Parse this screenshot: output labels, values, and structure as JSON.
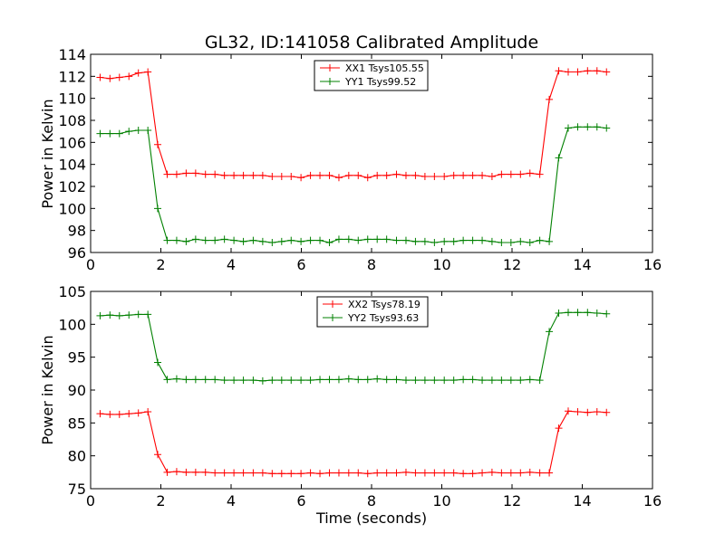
{
  "chart_data": [
    {
      "type": "line",
      "title": "GL32, ID:141058 Calibrated Amplitude",
      "xlabel": "",
      "ylabel": "Power in Kelvin",
      "xlim": [
        0,
        16
      ],
      "ylim": [
        96,
        114
      ],
      "xticks": [
        0,
        2,
        4,
        6,
        8,
        10,
        12,
        14,
        16
      ],
      "yticks": [
        96,
        98,
        100,
        102,
        104,
        106,
        108,
        110,
        112,
        114
      ],
      "legend": "top-center",
      "x": [
        0.27,
        0.55,
        0.82,
        1.09,
        1.36,
        1.63,
        1.91,
        2.18,
        2.45,
        2.72,
        2.99,
        3.27,
        3.54,
        3.81,
        4.08,
        4.35,
        4.63,
        4.9,
        5.17,
        5.44,
        5.71,
        5.99,
        6.26,
        6.53,
        6.8,
        7.07,
        7.35,
        7.62,
        7.89,
        8.16,
        8.43,
        8.71,
        8.98,
        9.25,
        9.52,
        9.79,
        10.07,
        10.34,
        10.61,
        10.88,
        11.15,
        11.43,
        11.7,
        11.97,
        12.24,
        12.51,
        12.79,
        13.06,
        13.33,
        13.6,
        13.87,
        14.15,
        14.42,
        14.69
      ],
      "series": [
        {
          "name": "XX1 Tsys105.55",
          "color": "#ff0000",
          "values": [
            111.9,
            111.8,
            111.9,
            112.0,
            112.3,
            112.4,
            105.8,
            103.1,
            103.1,
            103.2,
            103.2,
            103.1,
            103.1,
            103.0,
            103.0,
            103.0,
            103.0,
            103.0,
            102.9,
            102.9,
            102.9,
            102.8,
            103.0,
            103.0,
            103.0,
            102.8,
            103.0,
            103.0,
            102.8,
            103.0,
            103.0,
            103.1,
            103.0,
            103.0,
            102.9,
            102.9,
            102.9,
            103.0,
            103.0,
            103.0,
            103.0,
            102.9,
            103.1,
            103.1,
            103.1,
            103.2,
            103.1,
            109.9,
            112.5,
            112.4,
            112.4,
            112.5,
            112.5,
            112.4
          ]
        },
        {
          "name": "YY1 Tsys99.52",
          "color": "#008000",
          "values": [
            106.8,
            106.8,
            106.8,
            107.0,
            107.1,
            107.1,
            100.0,
            97.1,
            97.1,
            97.0,
            97.2,
            97.1,
            97.1,
            97.2,
            97.1,
            97.0,
            97.1,
            97.0,
            96.9,
            97.0,
            97.1,
            97.0,
            97.1,
            97.1,
            96.9,
            97.2,
            97.2,
            97.1,
            97.2,
            97.2,
            97.2,
            97.1,
            97.1,
            97.0,
            97.0,
            96.9,
            97.0,
            97.0,
            97.1,
            97.1,
            97.1,
            97.0,
            96.9,
            96.9,
            97.0,
            96.9,
            97.1,
            97.0,
            104.6,
            107.3,
            107.4,
            107.4,
            107.4,
            107.3
          ]
        }
      ]
    },
    {
      "type": "line",
      "title": "",
      "xlabel": "Time (seconds)",
      "ylabel": "Power in Kelvin",
      "xlim": [
        0,
        16
      ],
      "ylim": [
        75,
        105
      ],
      "xticks": [
        0,
        2,
        4,
        6,
        8,
        10,
        12,
        14,
        16
      ],
      "yticks": [
        75,
        80,
        85,
        90,
        95,
        100,
        105
      ],
      "legend": "top-center",
      "x": [
        0.27,
        0.55,
        0.82,
        1.09,
        1.36,
        1.63,
        1.91,
        2.18,
        2.45,
        2.72,
        2.99,
        3.27,
        3.54,
        3.81,
        4.08,
        4.35,
        4.63,
        4.9,
        5.17,
        5.44,
        5.71,
        5.99,
        6.26,
        6.53,
        6.8,
        7.07,
        7.35,
        7.62,
        7.89,
        8.16,
        8.43,
        8.71,
        8.98,
        9.25,
        9.52,
        9.79,
        10.07,
        10.34,
        10.61,
        10.88,
        11.15,
        11.43,
        11.7,
        11.97,
        12.24,
        12.51,
        12.79,
        13.06,
        13.33,
        13.6,
        13.87,
        14.15,
        14.42,
        14.69
      ],
      "series": [
        {
          "name": "XX2 Tsys78.19",
          "color": "#ff0000",
          "values": [
            86.4,
            86.3,
            86.3,
            86.4,
            86.5,
            86.7,
            80.2,
            77.5,
            77.6,
            77.5,
            77.5,
            77.5,
            77.4,
            77.4,
            77.4,
            77.4,
            77.4,
            77.4,
            77.3,
            77.3,
            77.3,
            77.3,
            77.4,
            77.3,
            77.4,
            77.4,
            77.4,
            77.4,
            77.3,
            77.4,
            77.4,
            77.4,
            77.5,
            77.4,
            77.4,
            77.4,
            77.4,
            77.4,
            77.3,
            77.3,
            77.4,
            77.5,
            77.4,
            77.4,
            77.4,
            77.5,
            77.4,
            77.4,
            84.2,
            86.8,
            86.7,
            86.6,
            86.7,
            86.6
          ]
        },
        {
          "name": "YY2 Tsys93.63",
          "color": "#008000",
          "values": [
            101.3,
            101.4,
            101.3,
            101.4,
            101.5,
            101.5,
            94.2,
            91.6,
            91.7,
            91.6,
            91.6,
            91.6,
            91.6,
            91.5,
            91.5,
            91.5,
            91.5,
            91.4,
            91.5,
            91.5,
            91.5,
            91.5,
            91.5,
            91.6,
            91.6,
            91.6,
            91.7,
            91.6,
            91.6,
            91.7,
            91.6,
            91.6,
            91.5,
            91.5,
            91.5,
            91.5,
            91.5,
            91.5,
            91.6,
            91.6,
            91.5,
            91.5,
            91.5,
            91.5,
            91.5,
            91.6,
            91.5,
            98.9,
            101.7,
            101.8,
            101.8,
            101.8,
            101.7,
            101.6
          ]
        }
      ]
    }
  ]
}
